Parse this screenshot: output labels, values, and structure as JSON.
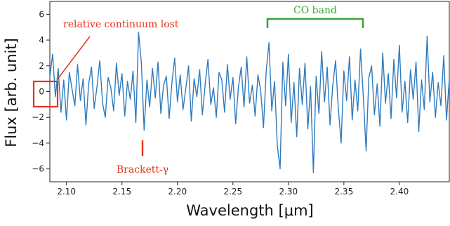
{
  "chart_data": {
    "type": "line",
    "xlabel": "Wavelength [μm]",
    "ylabel": "Flux [arb. unit]",
    "xlim": [
      2.085,
      2.445
    ],
    "ylim": [
      -7.0,
      7.0
    ],
    "x_ticks": [
      2.1,
      2.15,
      2.2,
      2.25,
      2.3,
      2.35,
      2.4
    ],
    "x_tick_labels": [
      "2.10",
      "2.15",
      "2.20",
      "2.25",
      "2.30",
      "2.35",
      "2.40"
    ],
    "y_ticks": [
      -6,
      -4,
      -2,
      0,
      2,
      4,
      6
    ],
    "y_tick_labels": [
      "−6",
      "−4",
      "−2",
      "0",
      "2",
      "4",
      "6"
    ],
    "grid": false,
    "line_color": "#2f7bbd",
    "series": [
      {
        "x": [
          2.085,
          2.0875,
          2.09,
          2.0925,
          2.095,
          2.0975,
          2.1,
          2.1025,
          2.105,
          2.1075,
          2.11,
          2.1125,
          2.115,
          2.1175,
          2.12,
          2.1225,
          2.125,
          2.1275,
          2.13,
          2.1325,
          2.135,
          2.1375,
          2.14,
          2.1425,
          2.145,
          2.1475,
          2.15,
          2.1525,
          2.155,
          2.1575,
          2.16,
          2.1625,
          2.165,
          2.1675,
          2.17,
          2.1725,
          2.175,
          2.1775,
          2.18,
          2.1825,
          2.185,
          2.1875,
          2.19,
          2.1925,
          2.195,
          2.1975,
          2.2,
          2.2025,
          2.205,
          2.2075,
          2.21,
          2.2125,
          2.215,
          2.2175,
          2.22,
          2.2225,
          2.225,
          2.2275,
          2.23,
          2.2325,
          2.235,
          2.2375,
          2.24,
          2.2425,
          2.245,
          2.2475,
          2.25,
          2.2525,
          2.255,
          2.2575,
          2.26,
          2.2625,
          2.265,
          2.2675,
          2.27,
          2.2725,
          2.275,
          2.2775,
          2.28,
          2.2825,
          2.285,
          2.2875,
          2.29,
          2.2925,
          2.295,
          2.2975,
          2.3,
          2.3025,
          2.305,
          2.3075,
          2.31,
          2.3125,
          2.315,
          2.3175,
          2.32,
          2.3225,
          2.325,
          2.3275,
          2.33,
          2.3325,
          2.335,
          2.3375,
          2.34,
          2.3425,
          2.345,
          2.3475,
          2.35,
          2.3525,
          2.355,
          2.3575,
          2.36,
          2.3625,
          2.365,
          2.3675,
          2.37,
          2.3725,
          2.375,
          2.3775,
          2.38,
          2.3825,
          2.385,
          2.3875,
          2.39,
          2.3925,
          2.395,
          2.3975,
          2.4,
          2.4025,
          2.405,
          2.4075,
          2.41,
          2.4125,
          2.415,
          2.4175,
          2.42,
          2.4225,
          2.425,
          2.4275,
          2.43,
          2.4325,
          2.435,
          2.4375,
          2.44,
          2.4425,
          2.445
        ],
        "y": [
          1.2,
          2.9,
          -0.4,
          1.8,
          -1.6,
          0.9,
          -2.2,
          1.5,
          0.2,
          -1.1,
          2.1,
          -0.7,
          1.0,
          -2.6,
          0.6,
          1.9,
          -1.3,
          0.4,
          2.4,
          -0.9,
          -2.0,
          1.1,
          0.3,
          -1.5,
          2.2,
          -0.3,
          1.4,
          -1.9,
          0.8,
          -0.6,
          1.6,
          -2.4,
          4.6,
          2.2,
          -3.0,
          0.9,
          -1.2,
          1.8,
          -0.5,
          2.3,
          -1.7,
          0.5,
          1.2,
          -2.1,
          0.7,
          2.6,
          -0.8,
          1.3,
          -1.4,
          0.2,
          2.0,
          -2.3,
          1.0,
          -0.4,
          1.7,
          -1.8,
          0.6,
          2.5,
          -1.0,
          0.3,
          -2.0,
          1.5,
          0.9,
          -1.6,
          2.1,
          -0.6,
          1.1,
          -2.5,
          0.4,
          1.9,
          -1.2,
          2.7,
          -0.9,
          0.5,
          -1.9,
          1.3,
          0.1,
          -2.8,
          1.6,
          3.8,
          -1.5,
          0.8,
          -4.2,
          -6.0,
          2.3,
          -1.1,
          2.9,
          -2.4,
          0.7,
          -3.5,
          1.8,
          -1.0,
          2.2,
          -2.9,
          0.4,
          -6.3,
          1.2,
          -1.7,
          3.1,
          -0.8,
          1.9,
          -2.6,
          0.5,
          2.4,
          -1.3,
          -4.0,
          1.6,
          -0.7,
          2.7,
          -2.2,
          0.9,
          -1.5,
          3.3,
          -0.4,
          -4.6,
          1.1,
          2.0,
          -1.8,
          0.6,
          -2.7,
          3.0,
          -0.9,
          1.4,
          -2.1,
          2.5,
          -0.5,
          3.6,
          -1.6,
          0.8,
          -2.4,
          1.7,
          -0.6,
          2.3,
          -3.1,
          0.9,
          -1.4,
          4.3,
          -0.8,
          1.5,
          -2.0,
          0.7,
          -1.1,
          2.8,
          -2.2,
          1.0
        ]
      }
    ],
    "annotations": {
      "continuum_label": "relative continuum lost",
      "brackett_label": "Brackett-γ",
      "co_label": "CO band",
      "red_color": "#e8321a",
      "green_color": "#3aa63a"
    }
  }
}
